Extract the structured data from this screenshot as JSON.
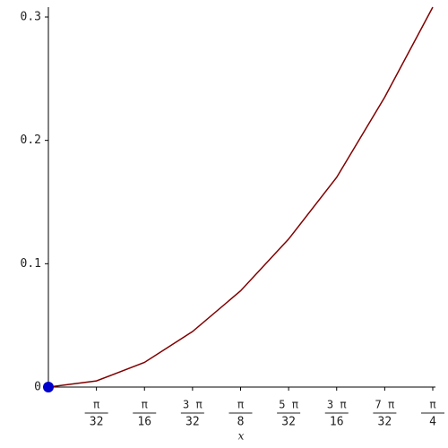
{
  "chart_data": {
    "type": "line",
    "x_label": "x",
    "x": [
      0,
      0.0982,
      0.1963,
      0.2945,
      0.3927,
      0.4909,
      0.589,
      0.6872,
      0.7854
    ],
    "series": [
      {
        "color": "#800000",
        "values": [
          0,
          0.005,
          0.02,
          0.045,
          0.078,
          0.12,
          0.17,
          0.235,
          0.308
        ]
      }
    ],
    "start_point_color": "#0000cc",
    "xlim": [
      0,
      0.7854
    ],
    "ylim": [
      0,
      0.308
    ],
    "xticks": [
      {
        "value": 0.09817,
        "label": "π",
        "denominator": "32"
      },
      {
        "value": 0.19635,
        "label": "π",
        "denominator": "16"
      },
      {
        "value": 0.29452,
        "label": "3 π",
        "denominator": "32"
      },
      {
        "value": 0.3927,
        "label": "π",
        "denominator": "8"
      },
      {
        "value": 0.49087,
        "label": "5 π",
        "denominator": "32"
      },
      {
        "value": 0.58905,
        "label": "3 π",
        "denominator": "16"
      },
      {
        "value": 0.68722,
        "label": "7 π",
        "denominator": "32"
      },
      {
        "value": 0.7854,
        "label": "π",
        "denominator": "4"
      }
    ],
    "yticks": [
      0,
      0.1,
      0.2,
      0.3
    ]
  }
}
